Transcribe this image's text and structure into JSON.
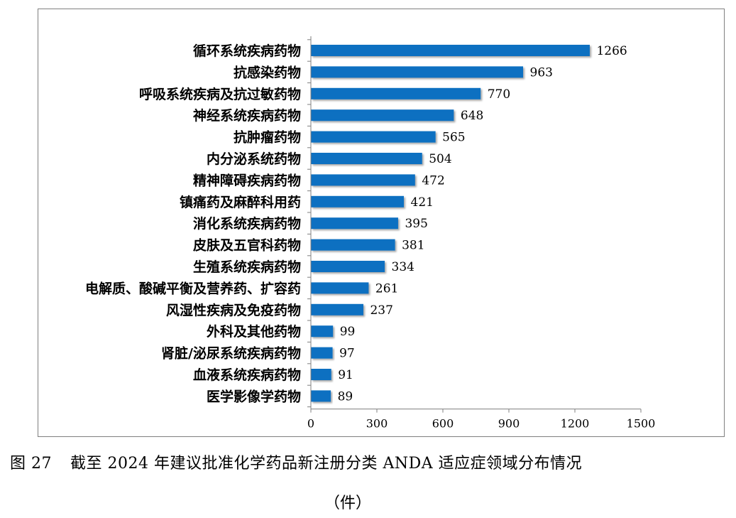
{
  "caption": {
    "figure_number": "图 27",
    "text": "截至 2024 年建议批准化学药品新注册分类 ANDA 适应症领域分布情况",
    "unit": "（件）"
  },
  "colors": {
    "bar": "#0e6fc1",
    "axis": "#7f7f7f",
    "text": "#000000"
  },
  "chart_data": {
    "type": "bar",
    "orientation": "horizontal",
    "title": "",
    "xlabel": "",
    "ylabel": "",
    "xlim": [
      0,
      1500
    ],
    "xticks": [
      0,
      300,
      600,
      900,
      1200,
      1500
    ],
    "grid": false,
    "categories": [
      "循环系统疾病药物",
      "抗感染药物",
      "呼吸系统疾病及抗过敏药物",
      "神经系统疾病药物",
      "抗肿瘤药物",
      "内分泌系统药物",
      "精神障碍疾病药物",
      "镇痛药及麻醉科用药",
      "消化系统疾病药物",
      "皮肤及五官科药物",
      "生殖系统疾病药物",
      "电解质、酸碱平衡及营养药、扩容药",
      "风湿性疾病及免疫药物",
      "外科及其他药物",
      "肾脏/泌尿系统疾病药物",
      "血液系统疾病药物",
      "医学影像学药物"
    ],
    "values": [
      1266,
      963,
      770,
      648,
      565,
      504,
      472,
      421,
      395,
      381,
      334,
      261,
      237,
      99,
      97,
      91,
      89
    ],
    "data_labels": true
  }
}
